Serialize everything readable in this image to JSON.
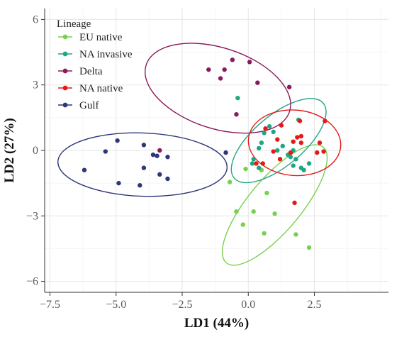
{
  "chart_data": {
    "type": "scatter",
    "title": "",
    "xlabel": "LD1 (44%)",
    "ylabel": "LD2 (27%)",
    "xlim": [
      -7.7,
      5.3
    ],
    "ylim": [
      -6.5,
      6.5
    ],
    "x_ticks": [
      -7.5,
      -5.0,
      -2.5,
      0.0,
      2.5
    ],
    "x_tick_labels": [
      "−7.5",
      "−5.0",
      "−2.5",
      "0.0",
      "2.5"
    ],
    "y_ticks": [
      -6,
      -3,
      0,
      3,
      6
    ],
    "y_tick_labels": [
      "−6",
      "−3",
      "0",
      "3",
      "6"
    ],
    "grid": true,
    "legend": {
      "title": "Lineage",
      "position": "top-left"
    },
    "series": [
      {
        "name": "EU native",
        "color": "#77d14f",
        "points": [
          [
            -0.7,
            -1.45
          ],
          [
            -0.1,
            -0.85
          ],
          [
            0.5,
            -0.9
          ],
          [
            0.7,
            -1.95
          ],
          [
            -0.45,
            -2.8
          ],
          [
            0.2,
            -2.8
          ],
          [
            1.0,
            -2.9
          ],
          [
            -0.2,
            -3.4
          ],
          [
            0.6,
            -3.8
          ],
          [
            1.8,
            -3.85
          ],
          [
            2.3,
            -4.45
          ]
        ],
        "ellipse": {
          "cx": 1.0,
          "cy": -2.5,
          "rx": 2.85,
          "ry": 1.2,
          "angle_deg": -50
        }
      },
      {
        "name": "NA invasive",
        "color": "#1fa685",
        "points": [
          [
            -0.4,
            2.4
          ],
          [
            1.9,
            1.4
          ],
          [
            0.8,
            1.1
          ],
          [
            0.6,
            0.8
          ],
          [
            0.95,
            0.85
          ],
          [
            1.3,
            0.2
          ],
          [
            1.1,
            0.0
          ],
          [
            1.5,
            -0.2
          ],
          [
            1.8,
            -0.4
          ],
          [
            2.3,
            -0.6
          ],
          [
            2.1,
            -0.9
          ],
          [
            0.4,
            0.1
          ],
          [
            0.5,
            0.35
          ],
          [
            0.2,
            -0.4
          ],
          [
            0.15,
            -0.6
          ],
          [
            0.4,
            -0.8
          ],
          [
            1.7,
            0.0
          ],
          [
            1.6,
            -0.3
          ],
          [
            1.7,
            -0.7
          ],
          [
            2.0,
            -0.8
          ]
        ],
        "ellipse": {
          "cx": 1.15,
          "cy": 0.45,
          "rx": 2.2,
          "ry": 1.15,
          "angle_deg": -40
        }
      },
      {
        "name": "Delta",
        "color": "#8a1a5c",
        "points": [
          [
            -1.5,
            3.7
          ],
          [
            -1.05,
            3.3
          ],
          [
            -0.9,
            3.7
          ],
          [
            -0.6,
            4.15
          ],
          [
            0.05,
            4.05
          ],
          [
            0.35,
            3.1
          ],
          [
            1.55,
            2.9
          ],
          [
            -0.45,
            1.65
          ],
          [
            -3.35,
            0.0
          ]
        ],
        "ellipse": {
          "cx": -1.15,
          "cy": 2.85,
          "rx": 2.85,
          "ry": 1.85,
          "angle_deg": 18
        }
      },
      {
        "name": "NA native",
        "color": "#e41a1a",
        "points": [
          [
            0.65,
            1.0
          ],
          [
            1.25,
            1.15
          ],
          [
            1.95,
            1.35
          ],
          [
            2.9,
            1.35
          ],
          [
            1.1,
            0.5
          ],
          [
            1.7,
            0.4
          ],
          [
            2.0,
            0.35
          ],
          [
            1.85,
            0.6
          ],
          [
            2.7,
            0.35
          ],
          [
            2.6,
            -0.1
          ],
          [
            2.85,
            -0.05
          ],
          [
            0.95,
            -0.05
          ],
          [
            1.6,
            -0.1
          ],
          [
            1.2,
            -0.4
          ],
          [
            0.3,
            -0.6
          ],
          [
            0.55,
            -0.6
          ],
          [
            1.75,
            -2.4
          ],
          [
            2.0,
            0.65
          ]
        ],
        "ellipse": {
          "cx": 1.75,
          "cy": 0.35,
          "rx": 1.75,
          "ry": 1.5,
          "angle_deg": 5
        }
      },
      {
        "name": "Gulf",
        "color": "#2e3779",
        "points": [
          [
            -6.2,
            -0.9
          ],
          [
            -5.4,
            -0.05
          ],
          [
            -4.95,
            0.45
          ],
          [
            -4.9,
            -1.5
          ],
          [
            -3.95,
            0.25
          ],
          [
            -3.6,
            -0.2
          ],
          [
            -3.45,
            -0.25
          ],
          [
            -3.05,
            -0.3
          ],
          [
            -3.95,
            -0.8
          ],
          [
            -3.35,
            -1.1
          ],
          [
            -3.05,
            -1.3
          ],
          [
            -4.1,
            -1.6
          ],
          [
            -0.85,
            -0.1
          ]
        ],
        "ellipse": {
          "cx": -4.0,
          "cy": -0.65,
          "rx": 3.2,
          "ry": 1.45,
          "angle_deg": 2
        }
      }
    ]
  }
}
